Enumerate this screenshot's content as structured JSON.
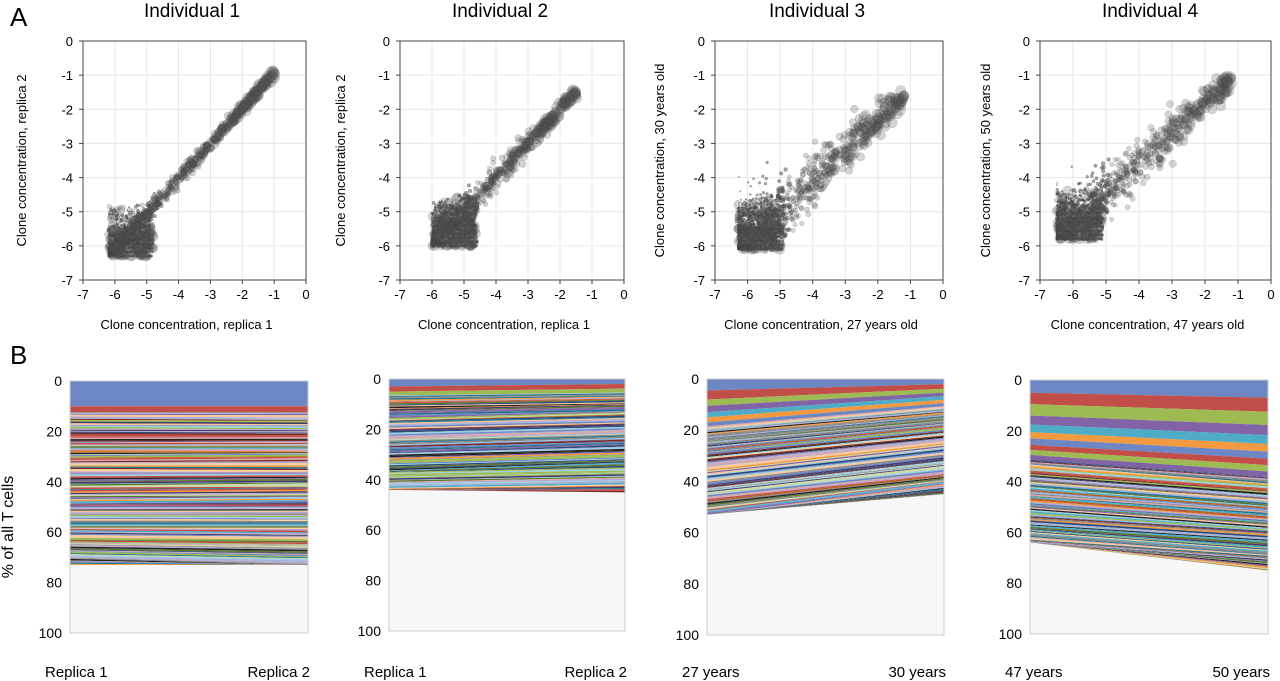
{
  "panels": {
    "A": "A",
    "B": "B"
  },
  "chart_data": [
    {
      "type": "scatter",
      "title": "Individual 1",
      "xlabel": "Clone concentration, replica 1",
      "ylabel": "Clone concentration, replica 2",
      "xlim": [
        -7,
        0
      ],
      "ylim": [
        -7,
        0
      ],
      "x_ticks": [
        "-7",
        "-6",
        "-5",
        "-4",
        "-3",
        "-2",
        "-1",
        "0"
      ],
      "y_ticks": [
        "0",
        "-1",
        "-2",
        "-3",
        "-4",
        "-5",
        "-6",
        "-7"
      ],
      "floor_x": -6.2,
      "floor_y": -6.3,
      "max_point": [
        -1.0,
        -0.95
      ],
      "spread": 0.12,
      "grid": true
    },
    {
      "type": "scatter",
      "title": "Individual 2",
      "xlabel": "Clone concentration, replica 1",
      "ylabel": "Clone concentration, replica 2",
      "xlim": [
        -7,
        0
      ],
      "ylim": [
        -7,
        0
      ],
      "x_ticks": [
        "-7",
        "-6",
        "-5",
        "-4",
        "-3",
        "-2",
        "-1",
        "0"
      ],
      "y_ticks": [
        "0",
        "-1",
        "-2",
        "-3",
        "-4",
        "-5",
        "-6",
        "-7"
      ],
      "floor_x": -6.0,
      "floor_y": -6.0,
      "max_point": [
        -1.5,
        -1.5
      ],
      "spread": 0.2,
      "grid": true
    },
    {
      "type": "scatter",
      "title": "Individual 3",
      "xlabel": "Clone concentration, 27 years old",
      "ylabel": "Clone concentration, 30 years old",
      "xlim": [
        -7,
        0
      ],
      "ylim": [
        -7,
        0
      ],
      "x_ticks": [
        "-7",
        "-6",
        "-5",
        "-4",
        "-3",
        "-2",
        "-1",
        "0"
      ],
      "y_ticks": [
        "0",
        "-1",
        "-2",
        "-3",
        "-4",
        "-5",
        "-6",
        "-7"
      ],
      "floor_x": -6.3,
      "floor_y": -6.1,
      "max_point": [
        -1.2,
        -1.6
      ],
      "spread": 0.45,
      "grid": true
    },
    {
      "type": "scatter",
      "title": "Individual 4",
      "xlabel": "Clone concentration, 47 years old",
      "ylabel": "Clone concentration, 50 years old",
      "xlim": [
        -7,
        0
      ],
      "ylim": [
        -7,
        0
      ],
      "x_ticks": [
        "-7",
        "-6",
        "-5",
        "-4",
        "-3",
        "-2",
        "-1",
        "0"
      ],
      "y_ticks": [
        "0",
        "-1",
        "-2",
        "-3",
        "-4",
        "-5",
        "-6",
        "-7"
      ],
      "floor_x": -6.5,
      "floor_y": -5.8,
      "max_point": [
        -1.2,
        -1.1
      ],
      "spread": 0.38,
      "grid": true
    },
    {
      "type": "area",
      "ylabel": "% of all T cells",
      "categories": [
        "Replica 1",
        "Replica 2"
      ],
      "y_ticks": [
        "0",
        "20",
        "40",
        "60",
        "80",
        "100"
      ],
      "ylim": [
        0,
        100
      ],
      "stack_total": [
        73,
        73
      ],
      "big_clones": [
        [
          10,
          10
        ],
        [
          2.5,
          2.5
        ]
      ],
      "tail_seed": 11
    },
    {
      "type": "area",
      "ylabel": "",
      "categories": [
        "Replica 1",
        "Replica 2"
      ],
      "y_ticks": [
        "0",
        "20",
        "40",
        "60",
        "80",
        "100"
      ],
      "ylim": [
        0,
        100
      ],
      "stack_total": [
        44,
        45
      ],
      "big_clones": [
        [
          3,
          2
        ],
        [
          2,
          1.8
        ],
        [
          1.5,
          1.6
        ]
      ],
      "tail_seed": 23
    },
    {
      "type": "area",
      "ylabel": "",
      "categories": [
        "27 years",
        "30 years"
      ],
      "y_ticks": [
        "0",
        "20",
        "40",
        "60",
        "80",
        "100"
      ],
      "ylim": [
        0,
        100
      ],
      "stack_total": [
        53,
        45
      ],
      "big_clones": [
        [
          4.5,
          2
        ],
        [
          3.5,
          1.8
        ],
        [
          2.5,
          1.5
        ],
        [
          2.5,
          1.4
        ],
        [
          2,
          1.4
        ],
        [
          2,
          1.3
        ],
        [
          1.5,
          1.2
        ]
      ],
      "tail_seed": 37
    },
    {
      "type": "area",
      "ylabel": "",
      "categories": [
        "47 years",
        "50 years"
      ],
      "y_ticks": [
        "0",
        "20",
        "40",
        "60",
        "80",
        "100"
      ],
      "ylim": [
        0,
        100
      ],
      "stack_total": [
        64,
        75
      ],
      "big_clones": [
        [
          5,
          7
        ],
        [
          4.5,
          5.5
        ],
        [
          4.5,
          5.2
        ],
        [
          3.5,
          4
        ],
        [
          3,
          3.5
        ],
        [
          2.5,
          3
        ],
        [
          2.5,
          2.8
        ],
        [
          2,
          2.5
        ],
        [
          2,
          2.5
        ],
        [
          1.8,
          2.2
        ]
      ],
      "tail_seed": 53
    }
  ],
  "colors": {
    "scatter_point": "#555555",
    "axis": "#000000",
    "grid": "#e6e6e6",
    "frame_b": "#cccccc",
    "empty_b": "#f7f7f7",
    "palette": [
      "#6c87c4",
      "#c24e4a",
      "#9dbb52",
      "#8064a5",
      "#4facc6",
      "#f39a41",
      "#2c4b7b",
      "#7a2b2a",
      "#5f7632",
      "#4a3a66",
      "#2b7489",
      "#b85e1a",
      "#a2b3d8",
      "#dba5a3",
      "#c9d9a5",
      "#b8a9cc",
      "#9ccfe0",
      "#f8c89c",
      "#222222",
      "#888888"
    ]
  }
}
